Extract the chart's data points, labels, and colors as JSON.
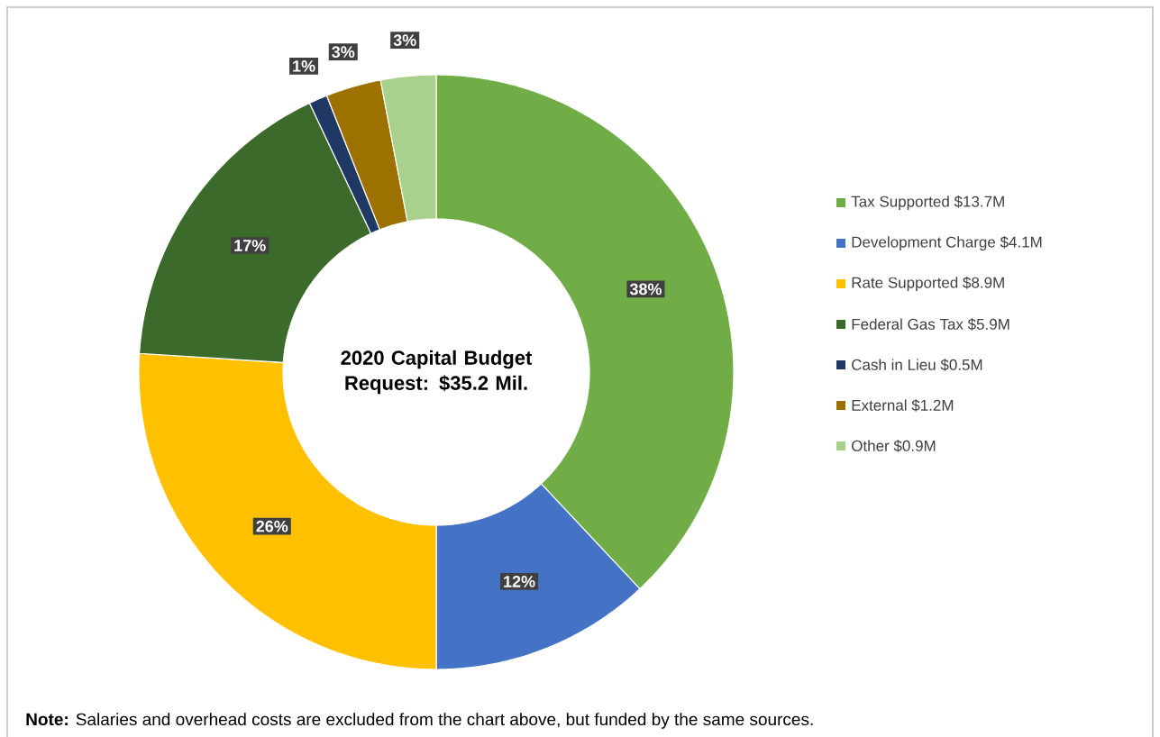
{
  "chart_data": {
    "type": "donut",
    "title": "2020 Capital Budget Request: $35.2 Mil.",
    "categories": [
      "Tax Supported $13.7M",
      "Development Charge $4.1M",
      "Rate Supported $8.9M",
      "Federal Gas Tax $5.9M",
      "Cash in Lieu $0.5M",
      "External $1.2M",
      "Other $0.9M"
    ],
    "values": [
      38,
      12,
      26,
      17,
      1,
      3,
      3
    ],
    "value_labels": [
      "38%",
      "12%",
      "26%",
      "17%",
      "1%",
      "3%",
      "3%"
    ],
    "colors": [
      "#70ad47",
      "#4472c4",
      "#ffc000",
      "#3b6a2a",
      "#203864",
      "#9c7100",
      "#a9d18e"
    ],
    "legend": "right",
    "annotations": [
      "**Note:** Salaries and overhead costs are excluded from the chart above, but funded by the same sources."
    ]
  }
}
